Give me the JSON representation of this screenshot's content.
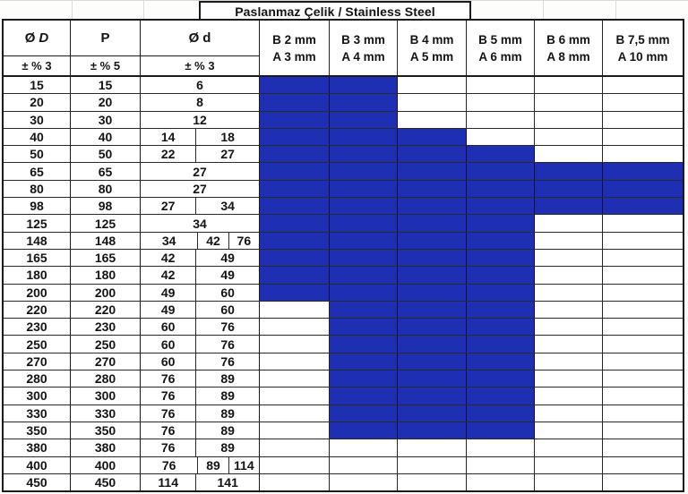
{
  "title": "Paslanmaz Çelik / Stainless Steel",
  "colors": {
    "fill_blue": "#1F2FB3",
    "grid": "#262626",
    "outer_border": "#1b1b1b",
    "faint_grid": "#d9d9d9"
  },
  "header": {
    "diameter_symbol": "Ø",
    "outer_letter": "D",
    "p_label": "P",
    "inner_letter": "d",
    "tol_outer": "± % 3",
    "tol_p": "± % 5",
    "tol_inner": "± % 3",
    "size_cols": [
      {
        "b": "B 2 mm",
        "a": "A 3 mm"
      },
      {
        "b": "B 3 mm",
        "a": "A 4 mm"
      },
      {
        "b": "B 4 mm",
        "a": "A 5 mm"
      },
      {
        "b": "B 5 mm",
        "a": "A 6 mm"
      },
      {
        "b": "B 6 mm",
        "a": "A 8 mm"
      },
      {
        "b": "B 7,5 mm",
        "a": "A 10 mm"
      }
    ]
  },
  "rows": [
    {
      "D": "15",
      "P": "15",
      "d": [
        "6"
      ],
      "fill": [
        0,
        1
      ]
    },
    {
      "D": "20",
      "P": "20",
      "d": [
        "8"
      ],
      "fill": [
        0,
        1
      ]
    },
    {
      "D": "30",
      "P": "30",
      "d": [
        "12"
      ],
      "fill": [
        0,
        1
      ]
    },
    {
      "D": "40",
      "P": "40",
      "d": [
        "14",
        "18"
      ],
      "fill": [
        0,
        2
      ]
    },
    {
      "D": "50",
      "P": "50",
      "d": [
        "22",
        "27"
      ],
      "fill": [
        0,
        3
      ]
    },
    {
      "D": "65",
      "P": "65",
      "d": [
        "27"
      ],
      "fill": [
        0,
        5
      ]
    },
    {
      "D": "80",
      "P": "80",
      "d": [
        "27"
      ],
      "fill": [
        0,
        5
      ]
    },
    {
      "D": "98",
      "P": "98",
      "d": [
        "27",
        "34"
      ],
      "fill": [
        0,
        5
      ]
    },
    {
      "D": "125",
      "P": "125",
      "d": [
        "34"
      ],
      "fill": [
        0,
        3
      ]
    },
    {
      "D": "148",
      "P": "148",
      "d": [
        "34",
        "42",
        "76"
      ],
      "fill": [
        0,
        3
      ]
    },
    {
      "D": "165",
      "P": "165",
      "d": [
        "42",
        "49"
      ],
      "fill": [
        0,
        3
      ]
    },
    {
      "D": "180",
      "P": "180",
      "d": [
        "42",
        "49"
      ],
      "fill": [
        0,
        3
      ]
    },
    {
      "D": "200",
      "P": "200",
      "d": [
        "49",
        "60"
      ],
      "fill": [
        0,
        3
      ]
    },
    {
      "D": "220",
      "P": "220",
      "d": [
        "49",
        "60"
      ],
      "fill": [
        1,
        3
      ]
    },
    {
      "D": "230",
      "P": "230",
      "d": [
        "60",
        "76"
      ],
      "fill": [
        1,
        3
      ]
    },
    {
      "D": "250",
      "P": "250",
      "d": [
        "60",
        "76"
      ],
      "fill": [
        1,
        3
      ]
    },
    {
      "D": "270",
      "P": "270",
      "d": [
        "60",
        "76"
      ],
      "fill": [
        1,
        3
      ]
    },
    {
      "D": "280",
      "P": "280",
      "d": [
        "76",
        "89"
      ],
      "fill": [
        1,
        3
      ]
    },
    {
      "D": "300",
      "P": "300",
      "d": [
        "76",
        "89"
      ],
      "fill": [
        1,
        3
      ]
    },
    {
      "D": "330",
      "P": "330",
      "d": [
        "76",
        "89"
      ],
      "fill": [
        1,
        3
      ]
    },
    {
      "D": "350",
      "P": "350",
      "d": [
        "76",
        "89"
      ],
      "fill": [
        1,
        3
      ]
    },
    {
      "D": "380",
      "P": "380",
      "d": [
        "76",
        "89"
      ],
      "fill": null
    },
    {
      "D": "400",
      "P": "400",
      "d": [
        "76",
        "89",
        "114"
      ],
      "fill": null
    },
    {
      "D": "450",
      "P": "450",
      "d": [
        "114",
        "141"
      ],
      "fill": null
    }
  ]
}
